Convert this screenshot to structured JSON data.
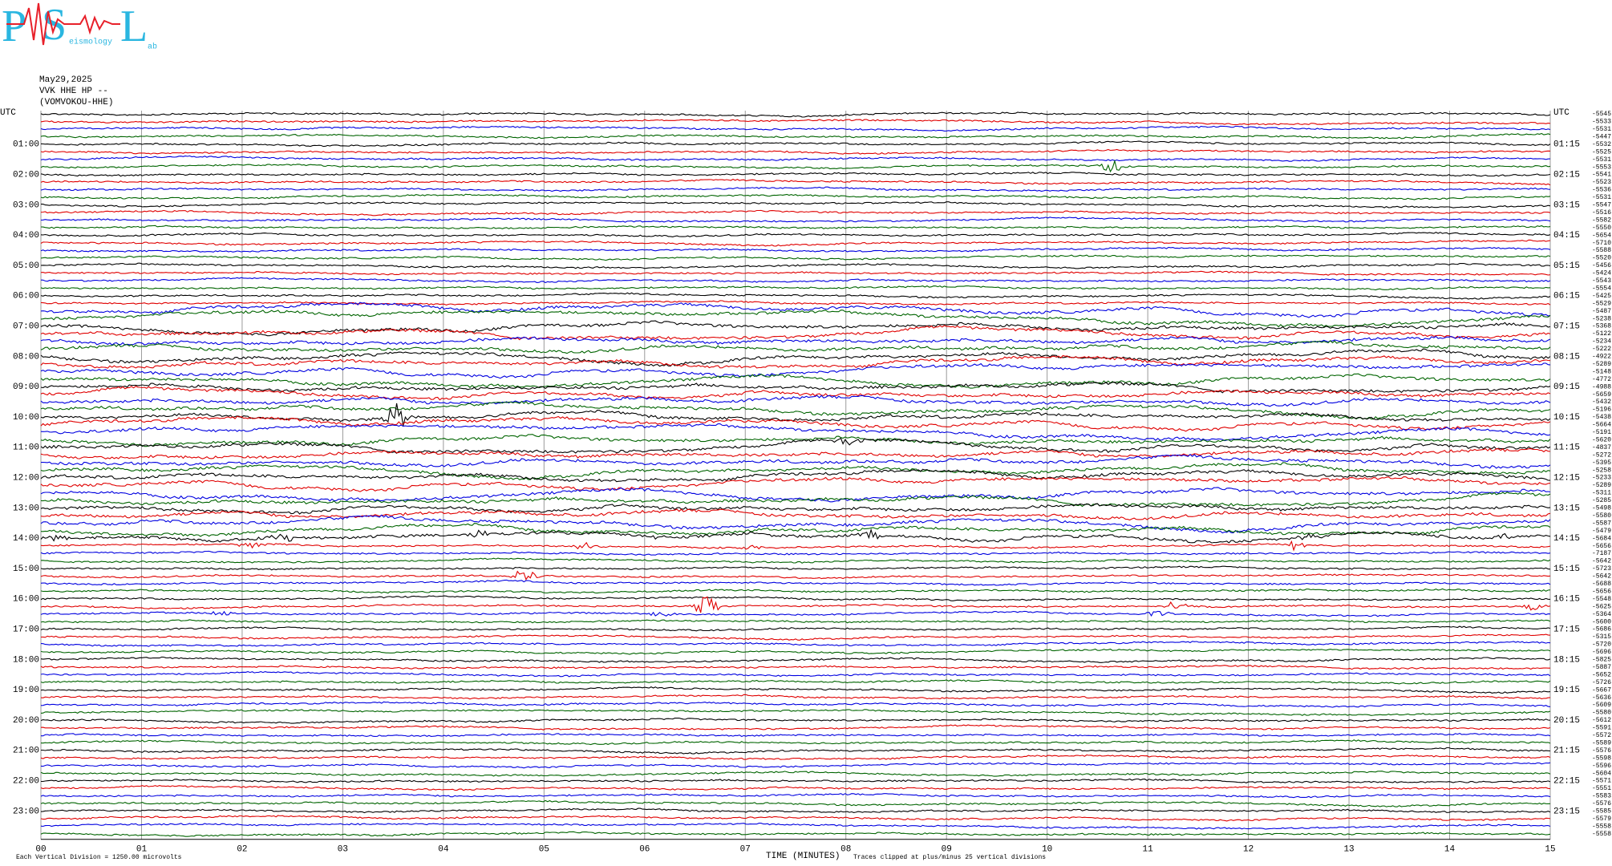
{
  "logo": {
    "p": "P",
    "s": "S",
    "l": "L",
    "mid": "eismology",
    "end": "ab"
  },
  "header": {
    "date": "May29,2025",
    "station": "VVK HHE HP --",
    "station_name": "(VOMVOKOU-HHE)"
  },
  "left_labels": [
    "UTC",
    "01:00",
    "02:00",
    "03:00",
    "04:00",
    "05:00",
    "06:00",
    "07:00",
    "08:00",
    "09:00",
    "10:00",
    "11:00",
    "12:00",
    "13:00",
    "14:00",
    "15:00",
    "16:00",
    "17:00",
    "18:00",
    "19:00",
    "20:00",
    "21:00",
    "22:00",
    "23:00"
  ],
  "right_time_labels": [
    "UTC",
    "01:15",
    "02:15",
    "03:15",
    "04:15",
    "05:15",
    "06:15",
    "07:15",
    "08:15",
    "09:15",
    "10:15",
    "11:15",
    "12:15",
    "13:15",
    "14:15",
    "15:15",
    "16:15",
    "17:15",
    "18:15",
    "19:15",
    "20:15",
    "21:15",
    "22:15",
    "23:15"
  ],
  "right_values": [
    "-5545",
    "-5533",
    "-5531",
    "-5447",
    "-5532",
    "-5525",
    "-5531",
    "-5553",
    "-5541",
    "-5523",
    "-5536",
    "-5531",
    "-5547",
    "-5516",
    "-5582",
    "-5550",
    "-5654",
    "-5710",
    "-5588",
    "-5520",
    "-5456",
    "-5424",
    "-5543",
    "-5554",
    "-5425",
    "-5529",
    "-5487",
    "-5238",
    "-5368",
    "-5122",
    "-5234",
    "-5222",
    "-4922",
    "-5289",
    "-5148",
    "-4772",
    "-4988",
    "-5659",
    "-5432",
    "-5196",
    "-5438",
    "-5664",
    "-5191",
    "-5620",
    "-4837",
    "-5272",
    "-5395",
    "-5258",
    "-5233",
    "-5289",
    "-5311",
    "-5285",
    "-5498",
    "-5580",
    "-5587",
    "-5479",
    "-5684",
    "-5656",
    "-7187",
    "-5642",
    "-5723",
    "-5642",
    "-5688",
    "-5656",
    "-5548",
    "-5625",
    "-5364",
    "-5600",
    "-5686",
    "-5315",
    "-5720",
    "-5696",
    "-5825",
    "-5887",
    "-5652",
    "-5726",
    "-5667",
    "-5636",
    "-5609",
    "-5580",
    "-5612",
    "-5591",
    "-5572",
    "-5589",
    "-5576",
    "-5598",
    "-5596",
    "-5604",
    "-5571",
    "-5551",
    "-5583",
    "-5576",
    "-5585",
    "-5579",
    "-5558",
    "-5558"
  ],
  "x_labels": [
    "00",
    "01",
    "02",
    "03",
    "04",
    "05",
    "06",
    "07",
    "08",
    "09",
    "10",
    "11",
    "12",
    "13",
    "14",
    "15"
  ],
  "footer": {
    "scale": "Each Vertical Division = 1250.00 microvolts",
    "x_title": "TIME (MINUTES)",
    "clip": "Traces clipped at plus/minus 25 vertical divisions"
  }
}
